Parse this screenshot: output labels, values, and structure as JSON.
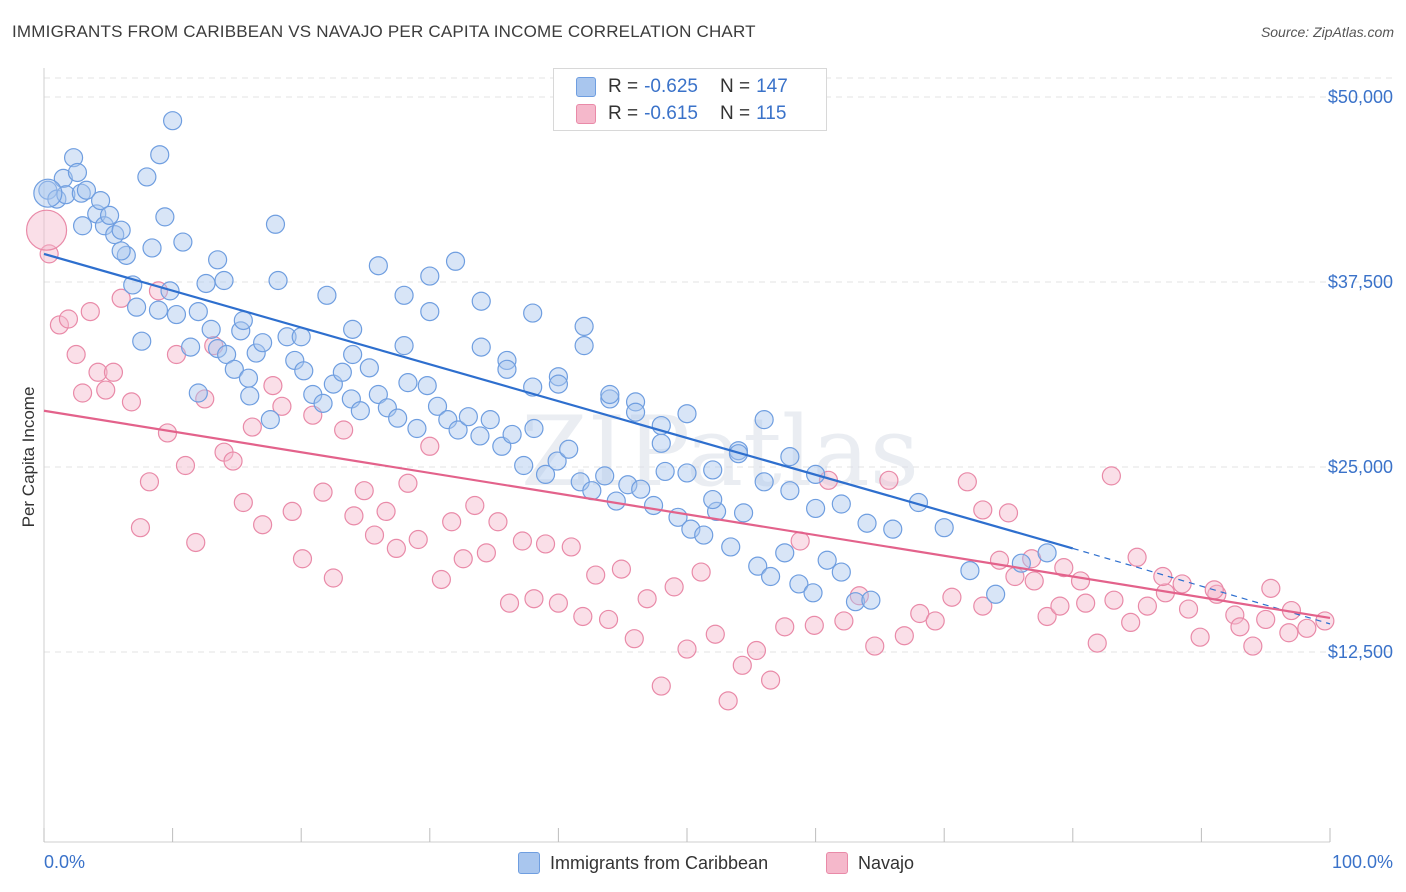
{
  "title": "IMMIGRANTS FROM CARIBBEAN VS NAVAJO PER CAPITA INCOME CORRELATION CHART",
  "source": "Source: ZipAtlas.com",
  "watermark": "ZIPatlas",
  "legend": {
    "series1": {
      "r_label": "R =",
      "r_value": "-0.625",
      "n_label": "N =",
      "n_value": "147"
    },
    "series2": {
      "r_label": "R =",
      "r_value": "-0.615",
      "n_label": "N =",
      "n_value": "115"
    }
  },
  "colors": {
    "blue_fill": "#a9c6ee",
    "blue_stroke": "#6f9ee0",
    "blue_line": "#2e6fce",
    "pink_fill": "#f5b8cb",
    "pink_stroke": "#e98aa8",
    "pink_line": "#e3628b",
    "tick_text": "#3a72c9",
    "grid": "#e3e3e3"
  },
  "chart_data": {
    "type": "scatter",
    "xlabel": "",
    "ylabel": "Per Capita Income",
    "x_axis": {
      "min": 0,
      "max": 100,
      "tick_labels": [
        "0.0%",
        "100.0%"
      ]
    },
    "y_axis": {
      "min": 0,
      "max": 50000,
      "ticks": [
        12500,
        25000,
        37500,
        50000
      ],
      "tick_labels": [
        "$12,500",
        "$25,000",
        "$37,500",
        "$50,000"
      ]
    },
    "series": [
      {
        "name": "Immigrants from Caribbean",
        "color": "#6f9ee0",
        "trend": {
          "x0": 0,
          "y0": 39400,
          "x1": 80,
          "y1": 19500,
          "x_dash_end": 100,
          "y_dash_end": 14400
        },
        "points": [
          [
            0.3,
            43.7
          ],
          [
            1.0,
            43.1
          ],
          [
            1.5,
            44.5
          ],
          [
            1.7,
            43.4
          ],
          [
            2.3,
            45.9
          ],
          [
            2.6,
            44.9
          ],
          [
            2.9,
            43.5
          ],
          [
            3.3,
            43.7
          ],
          [
            4.1,
            42.1
          ],
          [
            4.4,
            43.0
          ],
          [
            4.7,
            41.3
          ],
          [
            5.1,
            42.0
          ],
          [
            5.5,
            40.7
          ],
          [
            6.0,
            41.0
          ],
          [
            6.4,
            39.3
          ],
          [
            6.9,
            37.3
          ],
          [
            7.2,
            35.8
          ],
          [
            7.6,
            33.5
          ],
          [
            8.0,
            44.6
          ],
          [
            8.4,
            39.8
          ],
          [
            8.9,
            35.6
          ],
          [
            9.4,
            41.9
          ],
          [
            9.8,
            36.9
          ],
          [
            10.3,
            35.3
          ],
          [
            10.8,
            40.2
          ],
          [
            11.4,
            33.1
          ],
          [
            12.0,
            35.5
          ],
          [
            12.6,
            37.4
          ],
          [
            13.0,
            34.3
          ],
          [
            13.5,
            33.0
          ],
          [
            14.2,
            32.6
          ],
          [
            14.8,
            31.6
          ],
          [
            15.3,
            34.2
          ],
          [
            15.9,
            31.0
          ],
          [
            16.5,
            32.7
          ],
          [
            17.0,
            33.4
          ],
          [
            17.6,
            28.2
          ],
          [
            18.2,
            37.6
          ],
          [
            18.9,
            33.8
          ],
          [
            19.5,
            32.2
          ],
          [
            20.2,
            31.5
          ],
          [
            20.9,
            29.9
          ],
          [
            21.7,
            29.3
          ],
          [
            22.5,
            30.6
          ],
          [
            23.2,
            31.4
          ],
          [
            23.9,
            29.6
          ],
          [
            24.6,
            28.8
          ],
          [
            25.3,
            31.7
          ],
          [
            26.0,
            29.9
          ],
          [
            26.7,
            29.0
          ],
          [
            27.5,
            28.3
          ],
          [
            28.3,
            30.7
          ],
          [
            29.0,
            27.6
          ],
          [
            29.8,
            30.5
          ],
          [
            30.6,
            29.1
          ],
          [
            31.4,
            28.2
          ],
          [
            32.2,
            27.5
          ],
          [
            33.0,
            28.4
          ],
          [
            33.9,
            27.1
          ],
          [
            34.7,
            28.2
          ],
          [
            35.6,
            26.4
          ],
          [
            36.4,
            27.2
          ],
          [
            37.3,
            25.1
          ],
          [
            38.1,
            27.6
          ],
          [
            39.0,
            24.5
          ],
          [
            39.9,
            25.4
          ],
          [
            40.8,
            26.2
          ],
          [
            41.7,
            24.0
          ],
          [
            42.6,
            23.4
          ],
          [
            43.6,
            24.4
          ],
          [
            44.5,
            22.7
          ],
          [
            45.4,
            23.8
          ],
          [
            46.4,
            23.5
          ],
          [
            47.4,
            22.4
          ],
          [
            48.3,
            24.7
          ],
          [
            49.3,
            21.6
          ],
          [
            50.3,
            20.8
          ],
          [
            51.3,
            20.4
          ],
          [
            52.3,
            22.0
          ],
          [
            53.4,
            19.6
          ],
          [
            54.4,
            21.9
          ],
          [
            55.5,
            18.3
          ],
          [
            56.5,
            17.6
          ],
          [
            57.6,
            19.2
          ],
          [
            58.7,
            17.1
          ],
          [
            59.8,
            16.5
          ],
          [
            60.9,
            18.7
          ],
          [
            62.0,
            17.9
          ],
          [
            63.1,
            15.9
          ],
          [
            64.3,
            16.0
          ],
          [
            9.0,
            46.1
          ],
          [
            10.0,
            48.4
          ],
          [
            13.5,
            39.0
          ],
          [
            15.5,
            34.9
          ],
          [
            18.0,
            41.4
          ],
          [
            22.0,
            36.6
          ],
          [
            24.0,
            34.3
          ],
          [
            26.0,
            38.6
          ],
          [
            28.0,
            36.6
          ],
          [
            30.0,
            35.5
          ],
          [
            32.0,
            38.9
          ],
          [
            34.0,
            36.2
          ],
          [
            36.0,
            32.2
          ],
          [
            38.0,
            35.4
          ],
          [
            40.0,
            31.1
          ],
          [
            42.0,
            34.5
          ],
          [
            44.0,
            29.6
          ],
          [
            46.0,
            29.4
          ],
          [
            48.0,
            27.8
          ],
          [
            50.0,
            28.6
          ],
          [
            52.0,
            24.8
          ],
          [
            54.0,
            26.1
          ],
          [
            56.0,
            28.2
          ],
          [
            58.0,
            25.7
          ],
          [
            60.0,
            22.2
          ],
          [
            62.0,
            22.5
          ],
          [
            64.0,
            21.2
          ],
          [
            66.0,
            20.8
          ],
          [
            68.0,
            22.6
          ],
          [
            70.0,
            20.9
          ],
          [
            72.0,
            18.0
          ],
          [
            74.0,
            16.4
          ],
          [
            76.0,
            18.5
          ],
          [
            78.0,
            19.2
          ],
          [
            3.0,
            41.3
          ],
          [
            6.0,
            39.6
          ],
          [
            12.0,
            30.0
          ],
          [
            14.0,
            37.6
          ],
          [
            16.0,
            29.8
          ],
          [
            20.0,
            33.8
          ],
          [
            24.0,
            32.6
          ],
          [
            28.0,
            33.2
          ],
          [
            30.0,
            37.9
          ],
          [
            34.0,
            33.1
          ],
          [
            36.0,
            31.6
          ],
          [
            38.0,
            30.4
          ],
          [
            40.0,
            30.6
          ],
          [
            42.0,
            33.2
          ],
          [
            44.0,
            29.9
          ],
          [
            46.0,
            28.7
          ],
          [
            48.0,
            26.6
          ],
          [
            50.0,
            24.6
          ],
          [
            52.0,
            22.8
          ],
          [
            54.0,
            25.9
          ],
          [
            56.0,
            24.0
          ],
          [
            58.0,
            23.4
          ],
          [
            60.0,
            24.5
          ]
        ]
      },
      {
        "name": "Navajo",
        "color": "#e98aa8",
        "trend": {
          "x0": 0,
          "y0": 28800,
          "x1": 100,
          "y1": 14800
        },
        "points": [
          [
            0.4,
            39.4
          ],
          [
            1.2,
            34.6
          ],
          [
            1.9,
            35.0
          ],
          [
            2.5,
            32.6
          ],
          [
            3.0,
            30.0
          ],
          [
            3.6,
            35.5
          ],
          [
            4.2,
            31.4
          ],
          [
            4.8,
            30.2
          ],
          [
            5.4,
            31.4
          ],
          [
            6.0,
            36.4
          ],
          [
            6.8,
            29.4
          ],
          [
            7.5,
            20.9
          ],
          [
            8.2,
            24.0
          ],
          [
            8.9,
            36.9
          ],
          [
            9.6,
            27.3
          ],
          [
            10.3,
            32.6
          ],
          [
            11.0,
            25.1
          ],
          [
            11.8,
            19.9
          ],
          [
            12.5,
            29.6
          ],
          [
            13.2,
            33.2
          ],
          [
            14.0,
            26.0
          ],
          [
            14.7,
            25.4
          ],
          [
            15.5,
            22.6
          ],
          [
            16.2,
            27.7
          ],
          [
            17.0,
            21.1
          ],
          [
            17.8,
            30.5
          ],
          [
            18.5,
            29.1
          ],
          [
            19.3,
            22.0
          ],
          [
            20.1,
            18.8
          ],
          [
            20.9,
            28.5
          ],
          [
            21.7,
            23.3
          ],
          [
            22.5,
            17.5
          ],
          [
            23.3,
            27.5
          ],
          [
            24.1,
            21.7
          ],
          [
            24.9,
            23.4
          ],
          [
            25.7,
            20.4
          ],
          [
            26.6,
            22.0
          ],
          [
            27.4,
            19.5
          ],
          [
            28.3,
            23.9
          ],
          [
            29.1,
            20.1
          ],
          [
            30.0,
            26.4
          ],
          [
            30.9,
            17.4
          ],
          [
            31.7,
            21.3
          ],
          [
            32.6,
            18.8
          ],
          [
            33.5,
            22.4
          ],
          [
            34.4,
            19.2
          ],
          [
            35.3,
            21.3
          ],
          [
            36.2,
            15.8
          ],
          [
            37.2,
            20.0
          ],
          [
            38.1,
            16.1
          ],
          [
            39.0,
            19.8
          ],
          [
            40.0,
            15.8
          ],
          [
            41.0,
            19.6
          ],
          [
            41.9,
            14.9
          ],
          [
            42.9,
            17.7
          ],
          [
            43.9,
            14.7
          ],
          [
            44.9,
            18.1
          ],
          [
            45.9,
            13.4
          ],
          [
            46.9,
            16.1
          ],
          [
            48.0,
            10.2
          ],
          [
            49.0,
            16.9
          ],
          [
            50.0,
            12.7
          ],
          [
            51.1,
            17.9
          ],
          [
            52.2,
            13.7
          ],
          [
            53.2,
            9.2
          ],
          [
            54.3,
            11.6
          ],
          [
            55.4,
            12.6
          ],
          [
            56.5,
            10.6
          ],
          [
            57.6,
            14.2
          ],
          [
            58.8,
            20.0
          ],
          [
            59.9,
            14.3
          ],
          [
            61.0,
            24.1
          ],
          [
            62.2,
            14.6
          ],
          [
            63.4,
            16.3
          ],
          [
            64.6,
            12.9
          ],
          [
            65.7,
            24.1
          ],
          [
            66.9,
            13.6
          ],
          [
            68.1,
            15.1
          ],
          [
            69.3,
            14.6
          ],
          [
            70.6,
            16.2
          ],
          [
            71.8,
            24.0
          ],
          [
            73.0,
            15.6
          ],
          [
            74.3,
            18.7
          ],
          [
            75.5,
            17.6
          ],
          [
            76.8,
            18.8
          ],
          [
            78.0,
            14.9
          ],
          [
            79.3,
            18.2
          ],
          [
            80.6,
            17.3
          ],
          [
            81.9,
            13.1
          ],
          [
            83.2,
            16.0
          ],
          [
            84.5,
            14.5
          ],
          [
            85.8,
            15.6
          ],
          [
            87.2,
            16.5
          ],
          [
            88.5,
            17.1
          ],
          [
            89.9,
            13.5
          ],
          [
            91.2,
            16.4
          ],
          [
            92.6,
            15.0
          ],
          [
            94.0,
            12.9
          ],
          [
            95.4,
            16.8
          ],
          [
            96.8,
            13.8
          ],
          [
            98.2,
            14.1
          ],
          [
            99.6,
            14.6
          ],
          [
            97.0,
            15.3
          ],
          [
            95.0,
            14.7
          ],
          [
            93.0,
            14.2
          ],
          [
            91.0,
            16.7
          ],
          [
            89.0,
            15.4
          ],
          [
            87.0,
            17.6
          ],
          [
            85.0,
            18.9
          ],
          [
            83.0,
            24.4
          ],
          [
            81.0,
            15.8
          ],
          [
            79.0,
            15.6
          ],
          [
            77.0,
            17.3
          ],
          [
            75.0,
            21.9
          ],
          [
            73.0,
            22.1
          ]
        ]
      }
    ]
  },
  "bottom_legend": {
    "series1_label": "Immigrants from Caribbean",
    "series2_label": "Navajo"
  }
}
